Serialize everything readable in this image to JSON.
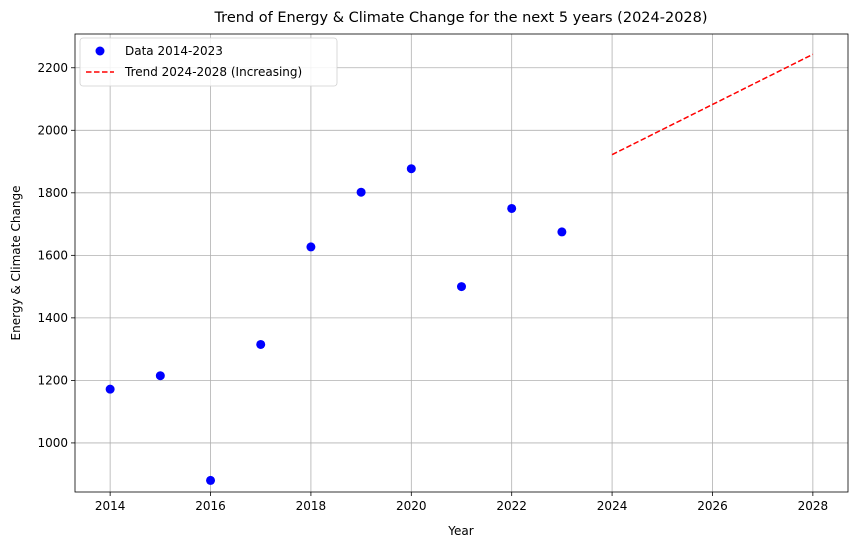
{
  "chart_data": {
    "type": "scatter",
    "title": "Trend of Energy & Climate Change for the next 5 years (2024-2028)",
    "xlabel": "Year",
    "ylabel": "Energy & Climate Change",
    "xlim": [
      2013.3,
      2028.7
    ],
    "ylim": [
      843,
      2308
    ],
    "xticks": [
      2014,
      2016,
      2018,
      2020,
      2022,
      2024,
      2026,
      2028
    ],
    "yticks": [
      1000,
      1200,
      1400,
      1600,
      1800,
      2000,
      2200
    ],
    "grid": true,
    "legend_position": "top-left",
    "series": [
      {
        "name": "Data 2014-2023",
        "kind": "scatter",
        "color": "#0000ff",
        "x": [
          2014,
          2015,
          2016,
          2017,
          2018,
          2019,
          2020,
          2021,
          2022,
          2023
        ],
        "y": [
          1172,
          1215,
          880,
          1315,
          1627,
          1802,
          1877,
          1500,
          1750,
          1675
        ]
      },
      {
        "name": "Trend 2024-2028 (Increasing)",
        "kind": "line",
        "style": "dashed",
        "color": "#ff0000",
        "x": [
          2024,
          2028
        ],
        "y": [
          1922,
          2243
        ]
      }
    ]
  }
}
